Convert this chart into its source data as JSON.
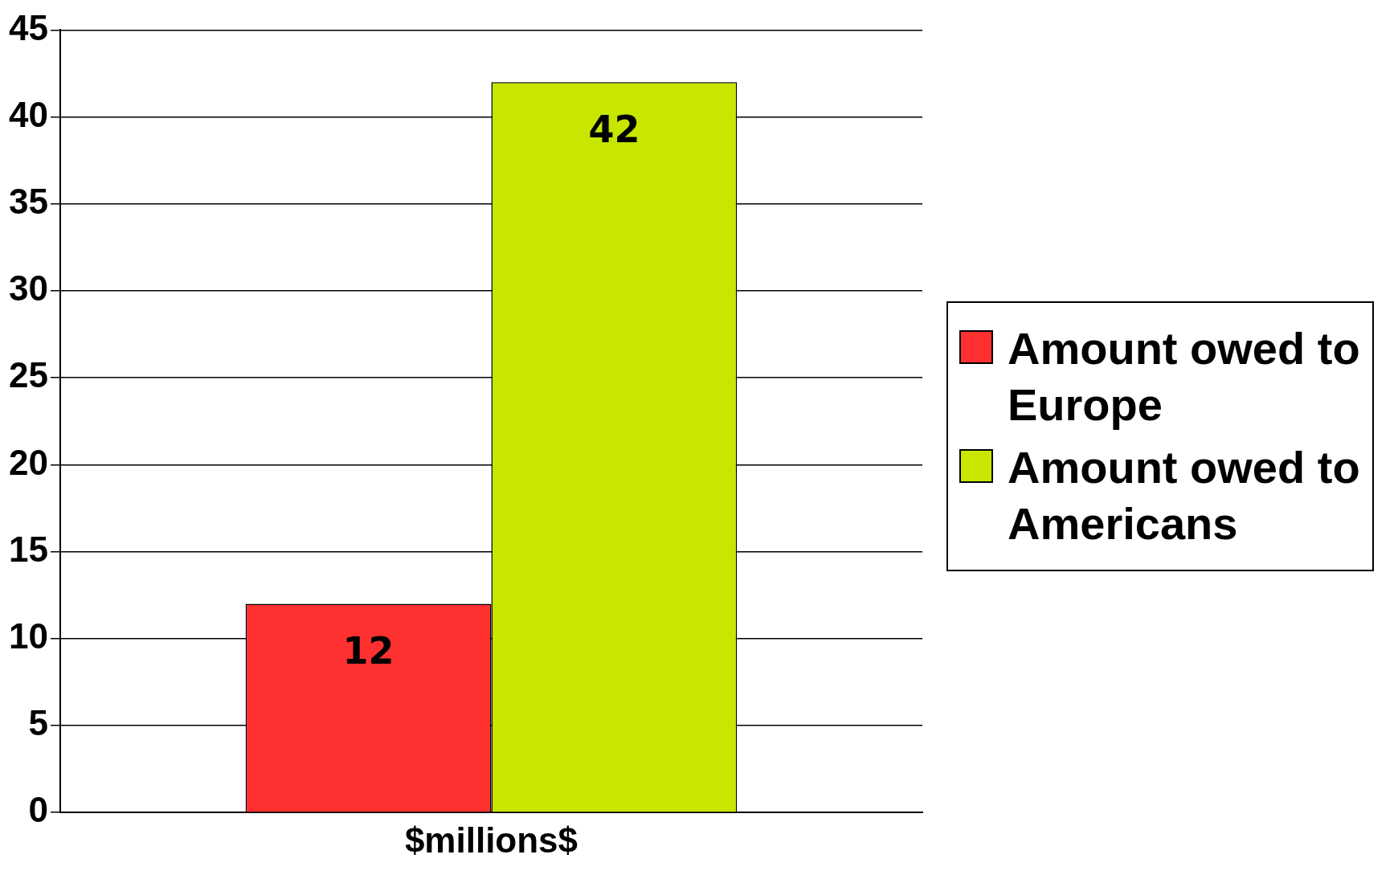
{
  "chart_data": {
    "type": "bar",
    "categories": [
      "$millions$"
    ],
    "series": [
      {
        "name": "Amount owed to Europe",
        "color": "#ff3030",
        "values": [
          12
        ]
      },
      {
        "name": "Amount owed to Americans",
        "color": "#c8e600",
        "values": [
          42
        ]
      }
    ],
    "ylim": [
      0,
      45
    ],
    "yticks": [
      0,
      5,
      10,
      15,
      20,
      25,
      30,
      35,
      40,
      45
    ],
    "grid": "y",
    "legend": "right",
    "data_labels": true
  }
}
